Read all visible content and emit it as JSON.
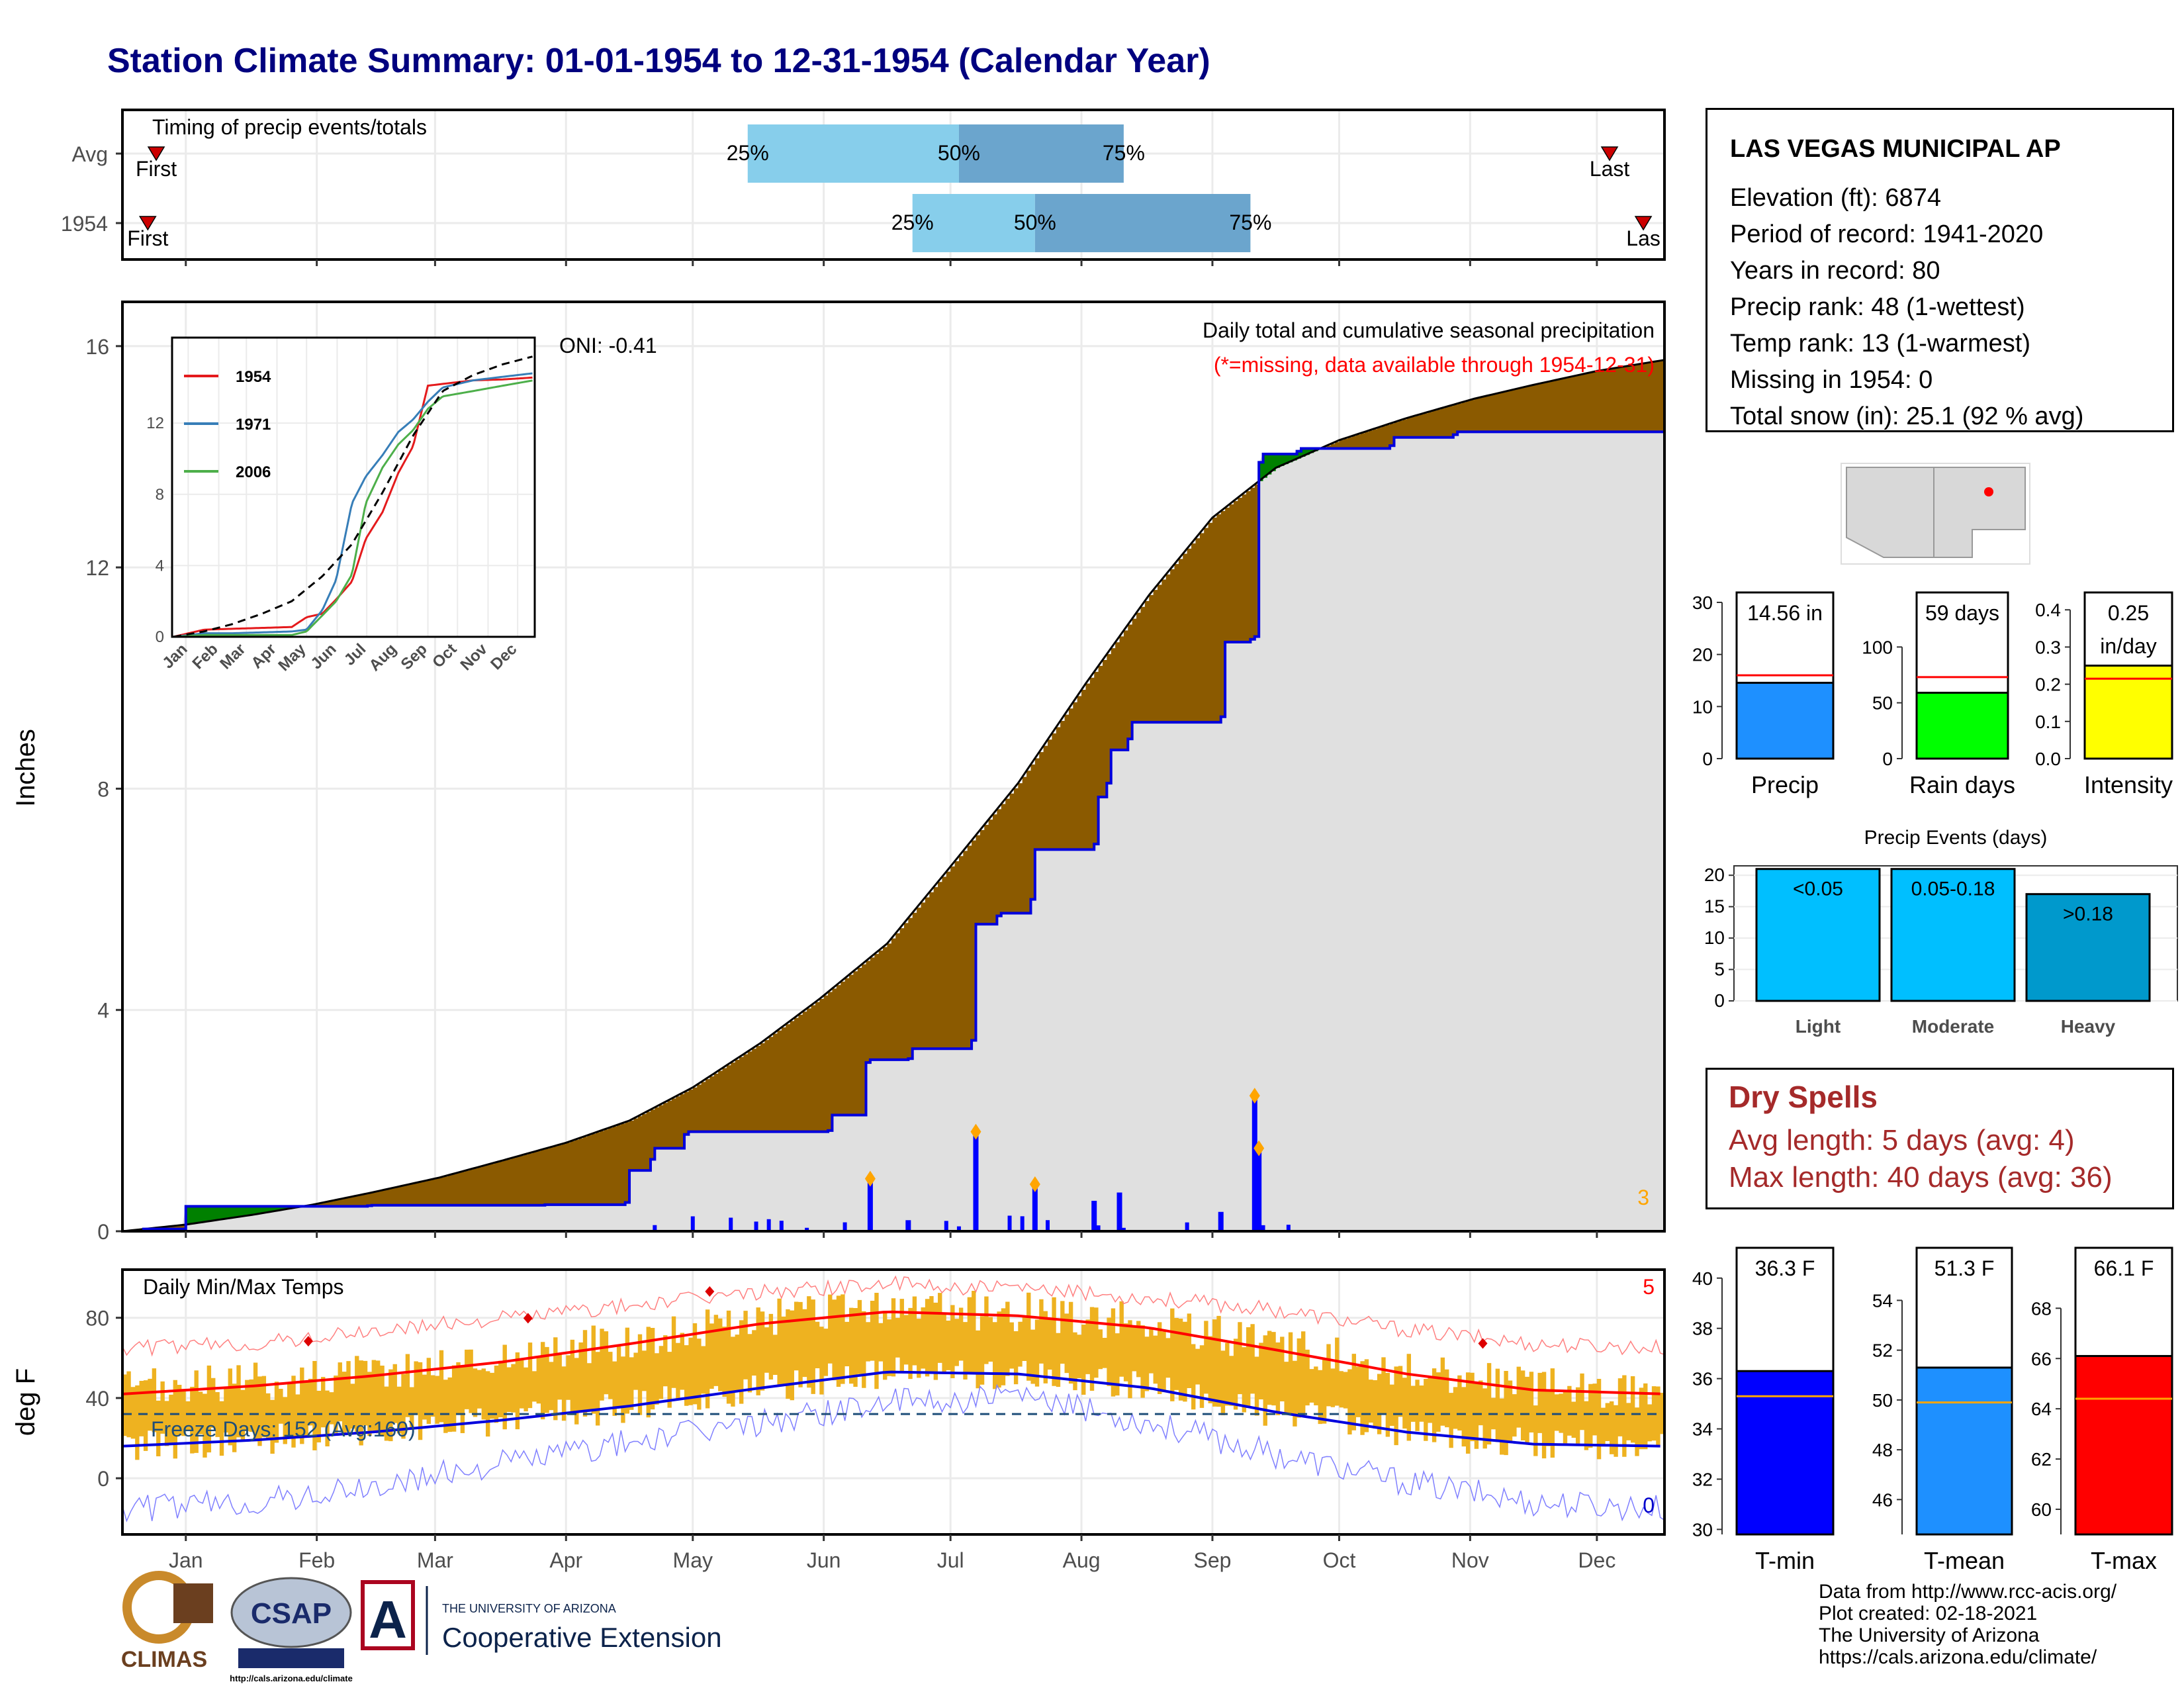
{
  "title": "Station Climate Summary: 01-01-1954 to 12-31-1954 (Calendar Year)",
  "timing": {
    "label": "Timing of precip events/totals",
    "rows": [
      {
        "name": "Avg",
        "first_label": "First",
        "last_label": "Last",
        "first_day": 8,
        "last_day": 352,
        "p25_day": 148,
        "p50_day": 198,
        "p75_day": 237
      },
      {
        "name": "1954",
        "first_label": "First",
        "last_label": "Las",
        "first_day": 6,
        "last_day": 360,
        "p25_day": 187,
        "p50_day": 216,
        "p75_day": 267
      }
    ],
    "pct_labels": [
      "25%",
      "50%",
      "75%"
    ],
    "colors": {
      "light": "#87ceeb",
      "dark": "#6ba5cd",
      "marker": "#cc0000"
    }
  },
  "precip_chart": {
    "ylabel": "Inches",
    "yticks": [
      0,
      4,
      8,
      12,
      16
    ],
    "ylim": [
      0,
      16.8
    ],
    "annotation_title": "Daily total and cumulative seasonal precipitation",
    "annotation_missing": "(*=missing, data available through 1954-12-31)",
    "oni": "ONI: -0.41",
    "corner_count": "3",
    "colors": {
      "deficit": "#8b5a00",
      "surplus": "#008000",
      "cum_line": "#0000dd",
      "fill": "#e0e0e0",
      "bars": "#0000ff",
      "marker": "#ffa500"
    }
  },
  "chart_data": [
    {
      "type": "area",
      "title": "Daily total and cumulative seasonal precipitation",
      "ylabel": "Inches",
      "ylim": [
        0,
        16.8
      ],
      "series": [
        {
          "name": "Avg cumulative",
          "x": [
            0,
            15,
            31,
            45,
            59,
            75,
            90,
            105,
            120,
            135,
            151,
            165,
            181,
            195,
            212,
            228,
            243,
            258,
            273,
            288,
            304,
            320,
            334,
            349,
            365
          ],
          "values": [
            0,
            0.12,
            0.3,
            0.48,
            0.7,
            0.97,
            1.28,
            1.6,
            2.0,
            2.6,
            3.4,
            4.2,
            5.2,
            6.5,
            8.1,
            9.9,
            11.5,
            12.9,
            13.8,
            14.3,
            14.7,
            15.05,
            15.3,
            15.55,
            15.75
          ]
        },
        {
          "name": "1954 cumulative",
          "x": [
            0,
            5,
            15,
            31,
            58,
            59,
            100,
            119,
            120,
            125,
            126,
            133,
            134,
            167,
            168,
            176,
            177,
            186,
            187,
            201,
            202,
            207,
            208,
            215,
            216,
            230,
            231,
            233,
            234,
            238,
            239,
            260,
            261,
            267,
            268,
            269,
            270,
            278,
            279,
            300,
            301,
            315,
            316,
            365
          ],
          "values": [
            0,
            0.04,
            0.45,
            0.45,
            0.46,
            0.47,
            0.48,
            0.52,
            1.1,
            1.3,
            1.5,
            1.75,
            1.8,
            1.82,
            2.1,
            3.05,
            3.1,
            3.12,
            3.3,
            3.45,
            5.55,
            5.7,
            5.75,
            6.0,
            6.9,
            7.0,
            7.85,
            8.1,
            8.7,
            8.9,
            9.2,
            9.3,
            10.65,
            10.7,
            10.75,
            13.9,
            14.05,
            14.1,
            14.15,
            14.2,
            14.35,
            14.4,
            14.45,
            14.56
          ]
        }
      ],
      "daily_precip": {
        "days": [
          177,
          186,
          202,
          216,
          230,
          236,
          260,
          268,
          269
        ],
        "values": [
          0.95,
          0.2,
          1.8,
          0.85,
          0.55,
          0.7,
          0.35,
          2.45,
          1.5
        ]
      }
    },
    {
      "type": "line",
      "title": "",
      "categories": [
        "Jan",
        "Feb",
        "Mar",
        "Apr",
        "May",
        "Jun",
        "Jul",
        "Aug",
        "Sep",
        "Oct",
        "Nov",
        "Dec"
      ],
      "yticks": [
        0,
        4,
        8,
        12
      ],
      "series": [
        {
          "name": "1954",
          "color": "#e41a1c",
          "x": [
            0,
            31,
            59,
            90,
            120,
            135,
            151,
            165,
            181,
            195,
            212,
            228,
            243,
            258,
            273,
            304,
            334,
            365
          ],
          "values": [
            0,
            0.4,
            0.45,
            0.5,
            0.55,
            1.1,
            1.3,
            2.1,
            3.1,
            5.5,
            7.0,
            9.2,
            10.7,
            14.1,
            14.2,
            14.4,
            14.45,
            14.56
          ]
        },
        {
          "name": "1971",
          "color": "#377eb8",
          "x": [
            0,
            31,
            59,
            90,
            120,
            135,
            151,
            165,
            181,
            195,
            212,
            228,
            243,
            258,
            273,
            304,
            334,
            365
          ],
          "values": [
            0,
            0.2,
            0.2,
            0.25,
            0.3,
            0.4,
            1.5,
            3.2,
            7.5,
            9.0,
            10.2,
            11.5,
            12.2,
            13.2,
            14.0,
            14.4,
            14.6,
            14.8
          ]
        },
        {
          "name": "2006",
          "color": "#4daf4a",
          "x": [
            0,
            31,
            59,
            90,
            120,
            135,
            151,
            165,
            181,
            195,
            212,
            228,
            243,
            258,
            273,
            304,
            334,
            365
          ],
          "values": [
            0,
            0.1,
            0.1,
            0.1,
            0.1,
            0.3,
            1.2,
            2.0,
            3.5,
            7.5,
            9.5,
            10.8,
            11.6,
            12.8,
            13.5,
            13.8,
            14.1,
            14.4
          ]
        },
        {
          "name": "Avg",
          "color": "#000000",
          "dashed": true,
          "x": [
            0,
            31,
            59,
            90,
            120,
            151,
            181,
            212,
            243,
            273,
            304,
            334,
            365
          ],
          "values": [
            0,
            0.3,
            0.7,
            1.3,
            2.0,
            3.4,
            5.2,
            8.1,
            11.3,
            13.8,
            14.7,
            15.3,
            15.75
          ]
        }
      ]
    },
    {
      "type": "bar",
      "title": "",
      "categories": [
        "Precip",
        "Rain days",
        "Intensity"
      ],
      "values": [
        14.56,
        59,
        0.25
      ],
      "averages": [
        16,
        73,
        0.215
      ],
      "labels": [
        "14.56 in",
        "59 days",
        "0.25 in/day"
      ]
    },
    {
      "type": "bar",
      "title": "Precip Events (days)",
      "categories": [
        "Light",
        "Moderate",
        "Heavy"
      ],
      "values": [
        21,
        21,
        17
      ],
      "labels": [
        "<0.05",
        "0.05-0.18",
        ">0.18"
      ],
      "yticks": [
        0,
        5,
        10,
        15,
        20
      ]
    },
    {
      "type": "line",
      "title": "Daily Min/Max Temps",
      "ylabel": "deg F",
      "yticks": [
        0,
        40,
        80
      ],
      "ylim": [
        -28,
        104
      ],
      "series": [
        {
          "name": "Avg max",
          "x": [
            0,
            31,
            59,
            90,
            120,
            151,
            181,
            212,
            243,
            273,
            304,
            334,
            365
          ],
          "values": [
            42,
            46,
            51,
            58,
            67,
            77,
            83,
            81,
            75,
            64,
            52,
            44,
            42
          ]
        },
        {
          "name": "Avg min",
          "x": [
            0,
            31,
            59,
            90,
            120,
            151,
            181,
            212,
            243,
            273,
            304,
            334,
            365
          ],
          "values": [
            16,
            19,
            23,
            29,
            36,
            45,
            53,
            52,
            45,
            33,
            23,
            17,
            16
          ]
        },
        {
          "name": "Record max",
          "x": [
            0,
            31,
            59,
            90,
            120,
            151,
            181,
            212,
            243,
            273,
            304,
            334,
            365
          ],
          "values": [
            65,
            67,
            73,
            80,
            86,
            93,
            97,
            94,
            90,
            84,
            74,
            67,
            65
          ]
        },
        {
          "name": "Record min",
          "x": [
            0,
            31,
            59,
            90,
            120,
            151,
            181,
            212,
            243,
            273,
            304,
            334,
            365
          ],
          "values": [
            -15,
            -12,
            -5,
            8,
            18,
            28,
            38,
            40,
            28,
            12,
            -2,
            -12,
            -15
          ]
        }
      ],
      "freeze_line": 32,
      "freeze_label": "Freeze Days: 152 (Avg:160)",
      "count_high": "5",
      "count_low": "0"
    },
    {
      "type": "bar",
      "title": "",
      "categories": [
        "T-min",
        "T-mean",
        "T-max"
      ],
      "values": [
        36.3,
        51.3,
        66.1
      ],
      "averages": [
        35.3,
        49.9,
        64.4
      ],
      "labels": [
        "36.3 F",
        "51.3 F",
        "66.1 F"
      ]
    }
  ],
  "months": [
    "Jan",
    "Feb",
    "Mar",
    "Apr",
    "May",
    "Jun",
    "Jul",
    "Aug",
    "Sep",
    "Oct",
    "Nov",
    "Dec"
  ],
  "temp_chart": {
    "ylabel": "deg F",
    "title": "Daily Min/Max Temps",
    "colors": {
      "bars": "#eeb220",
      "max": "#ff0000",
      "min": "#0000dd",
      "freeze": "#1f4e79"
    }
  },
  "station": {
    "name": "LAS VEGAS MUNICIPAL AP",
    "lines": [
      "Elevation (ft): 6874",
      "Period of record: 1941-2020",
      "Years in record: 80",
      "Precip rank: 48 (1-wettest)",
      "Temp rank: 13 (1-warmest)",
      "Missing in 1954: 0",
      "Total snow (in): 25.1 (92 % avg)"
    ]
  },
  "mini_bars": {
    "precip": {
      "label": "Precip",
      "value_label": "14.56 in",
      "color": "#1e90ff",
      "yticks": [
        0,
        10,
        20,
        30
      ],
      "ymax": 30
    },
    "raindays": {
      "label": "Rain days",
      "value_label": "59 days",
      "color": "#00ff00",
      "yticks": [
        0,
        50,
        100
      ],
      "ymax": 137
    },
    "intensity": {
      "label": "Intensity",
      "value_label_1": "0.25",
      "value_label_2": "in/day",
      "color": "#ffff00",
      "yticks": [
        "0.0",
        "0.1",
        "0.2",
        "0.3",
        "0.4"
      ],
      "ymax": 0.42
    }
  },
  "events": {
    "title": "Precip Events (days)",
    "colors": [
      "#00bfff",
      "#00bfff",
      "#0099cc"
    ]
  },
  "dry_spells": {
    "title": "Dry Spells",
    "avg": "Avg length: 5 days (avg: 4)",
    "max": "Max length: 40 days (avg: 36)"
  },
  "temp_bars": {
    "tmin": {
      "label": "T-min",
      "value_label": "36.3 F",
      "color": "#0000ff",
      "yticks": [
        30,
        32,
        34,
        36,
        38,
        40
      ],
      "ymin": 29.8,
      "ymax": 40.6
    },
    "tmean": {
      "label": "T-mean",
      "value_label": "51.3 F",
      "color": "#1e90ff",
      "yticks": [
        46,
        48,
        50,
        52,
        54
      ],
      "ymin": 44.6,
      "ymax": 55.5
    },
    "tmax": {
      "label": "T-max",
      "value_label": "66.1 F",
      "color": "#ff0000",
      "yticks": [
        60,
        62,
        64,
        66,
        68
      ],
      "ymin": 59.0,
      "ymax": 69.8
    }
  },
  "logos": {
    "climas": "CLIMAS",
    "csap": "CSAP",
    "csap_url": "http://cals.arizona.edu/climate",
    "ua_top": "THE UNIVERSITY OF ARIZONA",
    "ua_bottom": "Cooperative Extension"
  },
  "footer": [
    "Data from http://www.rcc-acis.org/",
    "Plot created: 02-18-2021",
    "The University of Arizona",
    "https://cals.arizona.edu/climate/"
  ]
}
